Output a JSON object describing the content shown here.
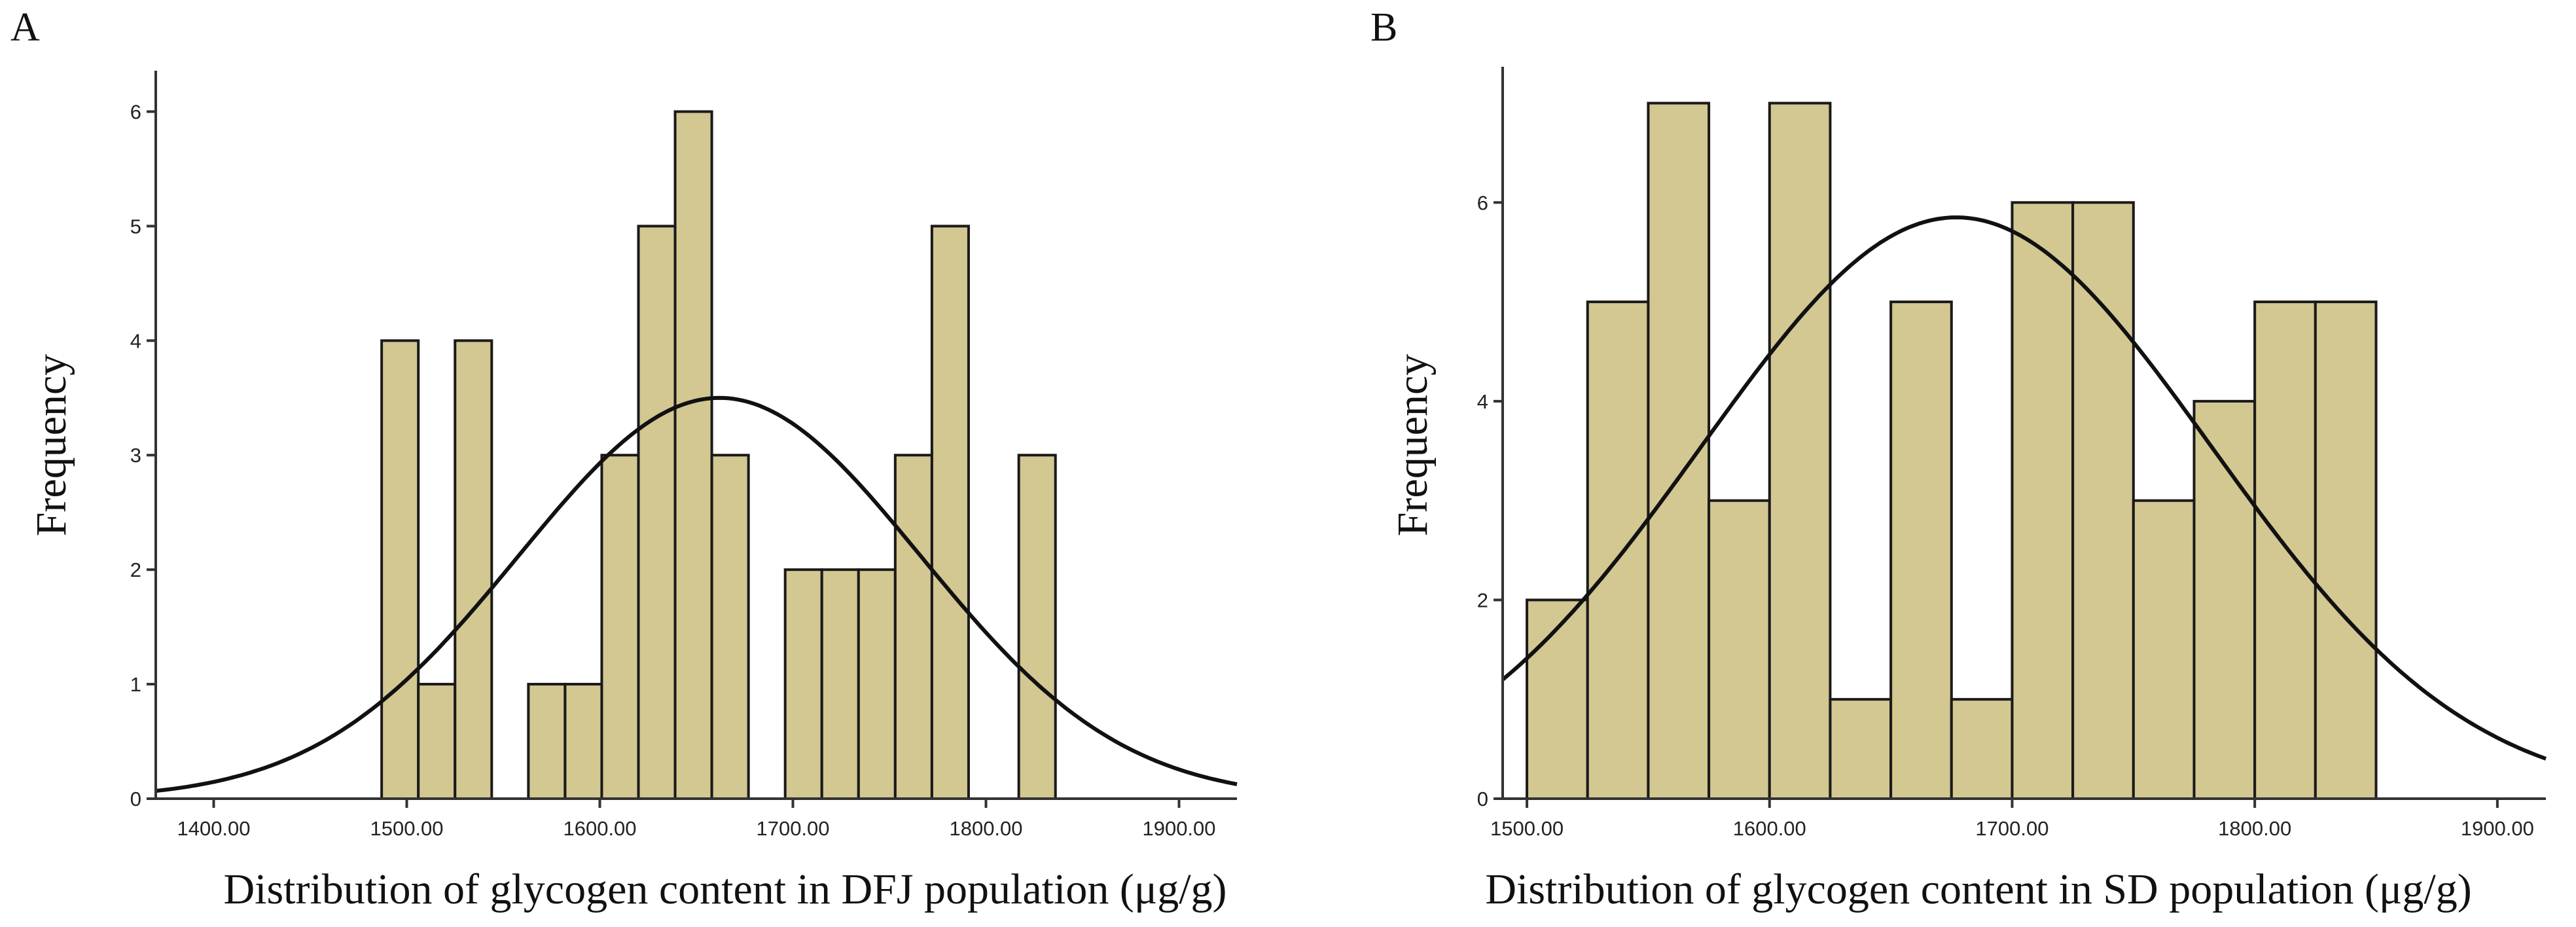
{
  "chart_data": [
    {
      "panel": "A",
      "type": "bar",
      "subtype": "histogram-with-normal-curve",
      "xlabel": "Distribution of glycogen content in DFJ population (μg/g)",
      "ylabel": "Frequency",
      "xlim": [
        1370,
        1930
      ],
      "ylim": [
        0,
        6.3
      ],
      "xticks": [
        1400,
        1500,
        1600,
        1700,
        1800,
        1900
      ],
      "xtick_labels": [
        "1400.00",
        "1500.00",
        "1600.00",
        "1700.00",
        "1800.00",
        "1900.00"
      ],
      "yticks": [
        0,
        1,
        2,
        3,
        4,
        5,
        6
      ],
      "ytick_labels": [
        "0",
        "1",
        "2",
        "3",
        "4",
        "5",
        "6"
      ],
      "bin_width": 19,
      "bins": [
        {
          "start": 1487,
          "value": 4
        },
        {
          "start": 1506,
          "value": 1
        },
        {
          "start": 1525,
          "value": 4
        },
        {
          "start": 1563,
          "value": 1
        },
        {
          "start": 1582,
          "value": 1
        },
        {
          "start": 1601,
          "value": 3
        },
        {
          "start": 1620,
          "value": 5
        },
        {
          "start": 1639,
          "value": 6
        },
        {
          "start": 1658,
          "value": 3
        },
        {
          "start": 1696,
          "value": 2
        },
        {
          "start": 1715,
          "value": 2
        },
        {
          "start": 1734,
          "value": 2
        },
        {
          "start": 1753,
          "value": 3
        },
        {
          "start": 1772,
          "value": 5
        },
        {
          "start": 1817,
          "value": 3
        }
      ],
      "normal_curve": {
        "mean": 1662,
        "sd": 104,
        "peak": 3.5
      }
    },
    {
      "panel": "B",
      "type": "bar",
      "subtype": "histogram-with-normal-curve",
      "xlabel": "Distribution of glycogen content in SD population (μg/g)",
      "ylabel": "Frequency",
      "xlim": [
        1490,
        1920
      ],
      "ylim": [
        0,
        7.3
      ],
      "xticks": [
        1500,
        1600,
        1700,
        1800,
        1900
      ],
      "xtick_labels": [
        "1500.00",
        "1600.00",
        "1700.00",
        "1800.00",
        "1900.00"
      ],
      "yticks": [
        0,
        2,
        4,
        6
      ],
      "ytick_labels": [
        "0",
        "2",
        "4",
        "6"
      ],
      "bin_width": 25,
      "bins": [
        {
          "start": 1500,
          "value": 2
        },
        {
          "start": 1525,
          "value": 5
        },
        {
          "start": 1550,
          "value": 7
        },
        {
          "start": 1575,
          "value": 3
        },
        {
          "start": 1600,
          "value": 7
        },
        {
          "start": 1625,
          "value": 1
        },
        {
          "start": 1650,
          "value": 5
        },
        {
          "start": 1675,
          "value": 1
        },
        {
          "start": 1700,
          "value": 6
        },
        {
          "start": 1725,
          "value": 6
        },
        {
          "start": 1750,
          "value": 3
        },
        {
          "start": 1775,
          "value": 4
        },
        {
          "start": 1800,
          "value": 5
        },
        {
          "start": 1825,
          "value": 5
        }
      ],
      "normal_curve": {
        "mean": 1677,
        "sd": 105,
        "peak": 5.85
      }
    }
  ]
}
